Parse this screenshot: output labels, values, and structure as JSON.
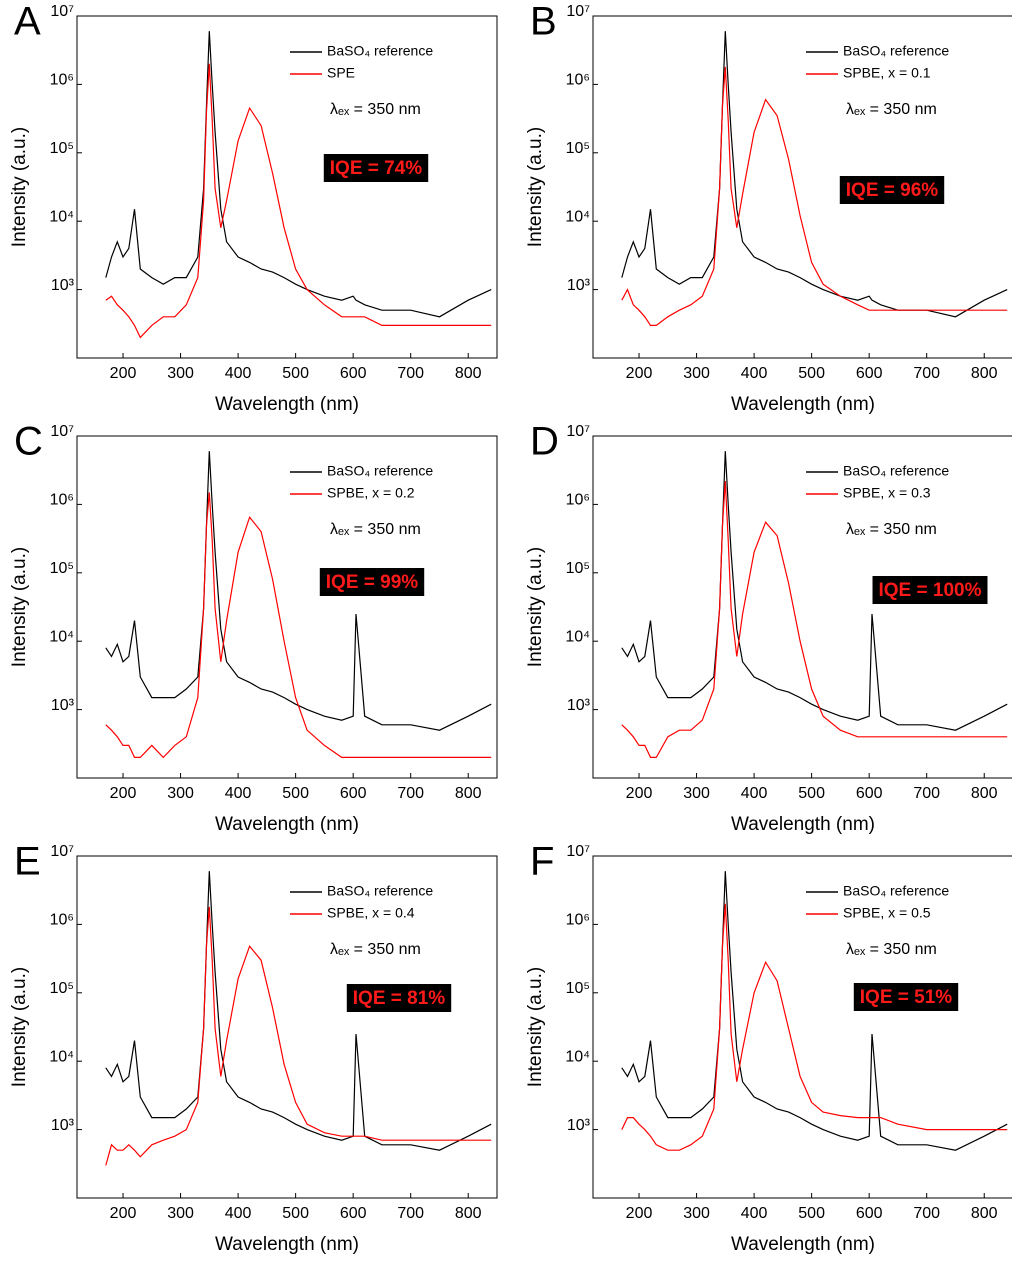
{
  "chart_data": [
    {
      "type": "line",
      "panel_label": "A",
      "x_label": "Wavelength (nm)",
      "y_label": "Intensity (a.u.)",
      "annotation": "λₑₓ = 350 nm",
      "iqe": "IQE = 74%",
      "y_scale": "log",
      "legend": "upper right",
      "xlim": [
        120,
        850
      ],
      "ylim": [
        100,
        10000000
      ],
      "xticks": [
        200,
        300,
        400,
        500,
        600,
        700,
        800
      ],
      "yticks": [
        {
          "value": 1000,
          "label": "10³"
        },
        {
          "value": 10000,
          "label": "10⁴"
        },
        {
          "value": 100000,
          "label": "10⁵"
        },
        {
          "value": 1000000,
          "label": "10⁶"
        },
        {
          "value": 10000000,
          "label": "10⁷"
        }
      ],
      "x": [
        170,
        180,
        190,
        200,
        210,
        220,
        230,
        250,
        270,
        290,
        310,
        330,
        340,
        345,
        350,
        355,
        360,
        370,
        380,
        400,
        420,
        440,
        460,
        480,
        500,
        520,
        550,
        580,
        600,
        605,
        620,
        650,
        700,
        750,
        800,
        840
      ],
      "series": [
        {
          "name": "BaSO₄ reference",
          "color": "#000000",
          "values": [
            1500,
            3000,
            5000,
            3000,
            4000,
            15000,
            2000,
            1500,
            1200,
            1500,
            1500,
            3000,
            30000,
            500000,
            6000000,
            1000000,
            200000,
            15000,
            5000,
            3000,
            2500,
            2000,
            1800,
            1500,
            1200,
            1000,
            800,
            700,
            800,
            700,
            600,
            500,
            500,
            400,
            700,
            1000
          ]
        },
        {
          "name": "SPE",
          "color": "#ff0000",
          "values": [
            700,
            800,
            600,
            500,
            400,
            300,
            200,
            300,
            400,
            400,
            600,
            1500,
            20000,
            400000,
            2000000,
            300000,
            30000,
            8000,
            20000,
            150000,
            450000,
            250000,
            50000,
            8000,
            2000,
            1000,
            600,
            400,
            400,
            400,
            400,
            300,
            300,
            300,
            300,
            300
          ]
        }
      ]
    },
    {
      "type": "line",
      "panel_label": "B",
      "x_label": "Wavelength (nm)",
      "y_label": "Intensity (a.u.)",
      "annotation": "λₑₓ = 350 nm",
      "iqe": "IQE = 96%",
      "y_scale": "log",
      "legend": "upper right",
      "xlim": [
        120,
        850
      ],
      "ylim": [
        100,
        10000000
      ],
      "xticks": [
        200,
        300,
        400,
        500,
        600,
        700,
        800
      ],
      "yticks": [
        {
          "value": 1000,
          "label": "10³"
        },
        {
          "value": 10000,
          "label": "10⁴"
        },
        {
          "value": 100000,
          "label": "10⁵"
        },
        {
          "value": 1000000,
          "label": "10⁶"
        },
        {
          "value": 10000000,
          "label": "10⁷"
        }
      ],
      "x": [
        170,
        180,
        190,
        200,
        210,
        220,
        230,
        250,
        270,
        290,
        310,
        330,
        340,
        345,
        350,
        355,
        360,
        370,
        380,
        400,
        420,
        440,
        460,
        480,
        500,
        520,
        550,
        580,
        600,
        605,
        620,
        650,
        700,
        750,
        800,
        840
      ],
      "series": [
        {
          "name": "BaSO₄ reference",
          "color": "#000000",
          "values": [
            1500,
            3000,
            5000,
            3000,
            4000,
            15000,
            2000,
            1500,
            1200,
            1500,
            1500,
            3000,
            30000,
            500000,
            6000000,
            1000000,
            200000,
            15000,
            5000,
            3000,
            2500,
            2000,
            1800,
            1500,
            1200,
            1000,
            800,
            700,
            800,
            700,
            600,
            500,
            500,
            400,
            700,
            1000
          ]
        },
        {
          "name": "SPBE, x = 0.1",
          "color": "#ff0000",
          "values": [
            700,
            1000,
            600,
            500,
            400,
            300,
            300,
            400,
            500,
            600,
            800,
            2000,
            30000,
            500000,
            1800000,
            300000,
            30000,
            8000,
            25000,
            200000,
            600000,
            350000,
            80000,
            12000,
            2500,
            1200,
            800,
            600,
            500,
            500,
            500,
            500,
            500,
            500,
            500,
            500
          ]
        }
      ]
    },
    {
      "type": "line",
      "panel_label": "C",
      "x_label": "Wavelength (nm)",
      "y_label": "Intensity (a.u.)",
      "annotation": "λₑₓ = 350 nm",
      "iqe": "IQE = 99%",
      "y_scale": "log",
      "legend": "upper right",
      "xlim": [
        120,
        850
      ],
      "ylim": [
        100,
        10000000
      ],
      "xticks": [
        200,
        300,
        400,
        500,
        600,
        700,
        800
      ],
      "yticks": [
        {
          "value": 1000,
          "label": "10³"
        },
        {
          "value": 10000,
          "label": "10⁴"
        },
        {
          "value": 100000,
          "label": "10⁵"
        },
        {
          "value": 1000000,
          "label": "10⁶"
        },
        {
          "value": 10000000,
          "label": "10⁷"
        }
      ],
      "x": [
        170,
        180,
        190,
        200,
        210,
        220,
        230,
        250,
        270,
        290,
        310,
        330,
        340,
        345,
        350,
        355,
        360,
        370,
        380,
        400,
        420,
        440,
        460,
        480,
        500,
        520,
        550,
        580,
        600,
        605,
        620,
        650,
        700,
        750,
        800,
        840
      ],
      "series": [
        {
          "name": "BaSO₄ reference",
          "color": "#000000",
          "values": [
            8000,
            6000,
            9000,
            5000,
            6000,
            20000,
            3000,
            1500,
            1500,
            1500,
            2000,
            3000,
            30000,
            500000,
            6000000,
            1000000,
            200000,
            15000,
            5000,
            3000,
            2500,
            2000,
            1800,
            1500,
            1200,
            1000,
            800,
            700,
            800,
            25000,
            800,
            600,
            600,
            500,
            800,
            1200
          ]
        },
        {
          "name": "SPBE, x = 0.2",
          "color": "#ff0000",
          "values": [
            600,
            500,
            400,
            300,
            300,
            200,
            200,
            300,
            200,
            300,
            400,
            1500,
            30000,
            500000,
            1500000,
            300000,
            30000,
            5000,
            20000,
            200000,
            650000,
            400000,
            80000,
            10000,
            1500,
            500,
            300,
            200,
            200,
            200,
            200,
            200,
            200,
            200,
            200,
            200
          ]
        }
      ]
    },
    {
      "type": "line",
      "panel_label": "D",
      "x_label": "Wavelength (nm)",
      "y_label": "Intensity (a.u.)",
      "annotation": "λₑₓ = 350 nm",
      "iqe": "IQE = 100%",
      "y_scale": "log",
      "legend": "upper right",
      "xlim": [
        120,
        850
      ],
      "ylim": [
        100,
        10000000
      ],
      "xticks": [
        200,
        300,
        400,
        500,
        600,
        700,
        800
      ],
      "yticks": [
        {
          "value": 1000,
          "label": "10³"
        },
        {
          "value": 10000,
          "label": "10⁴"
        },
        {
          "value": 100000,
          "label": "10⁵"
        },
        {
          "value": 1000000,
          "label": "10⁶"
        },
        {
          "value": 10000000,
          "label": "10⁷"
        }
      ],
      "x": [
        170,
        180,
        190,
        200,
        210,
        220,
        230,
        250,
        270,
        290,
        310,
        330,
        340,
        345,
        350,
        355,
        360,
        370,
        380,
        400,
        420,
        440,
        460,
        480,
        500,
        520,
        550,
        580,
        600,
        605,
        620,
        650,
        700,
        750,
        800,
        840
      ],
      "series": [
        {
          "name": "BaSO₄ reference",
          "color": "#000000",
          "values": [
            8000,
            6000,
            9000,
            5000,
            6000,
            20000,
            3000,
            1500,
            1500,
            1500,
            2000,
            3000,
            30000,
            500000,
            6000000,
            1000000,
            200000,
            15000,
            5000,
            3000,
            2500,
            2000,
            1800,
            1500,
            1200,
            1000,
            800,
            700,
            800,
            25000,
            800,
            600,
            600,
            500,
            800,
            1200
          ]
        },
        {
          "name": "SPBE, x = 0.3",
          "color": "#ff0000",
          "values": [
            600,
            500,
            400,
            300,
            300,
            200,
            200,
            400,
            500,
            500,
            700,
            2000,
            30000,
            500000,
            2200000,
            300000,
            30000,
            6000,
            25000,
            200000,
            550000,
            350000,
            70000,
            10000,
            2000,
            800,
            500,
            400,
            400,
            400,
            400,
            400,
            400,
            400,
            400,
            400
          ]
        }
      ]
    },
    {
      "type": "line",
      "panel_label": "E",
      "x_label": "Wavelength (nm)",
      "y_label": "Intensity (a.u.)",
      "annotation": "λₑₓ = 350 nm",
      "iqe": "IQE = 81%",
      "y_scale": "log",
      "legend": "upper right",
      "xlim": [
        120,
        850
      ],
      "ylim": [
        100,
        10000000
      ],
      "xticks": [
        200,
        300,
        400,
        500,
        600,
        700,
        800
      ],
      "yticks": [
        {
          "value": 1000,
          "label": "10³"
        },
        {
          "value": 10000,
          "label": "10⁴"
        },
        {
          "value": 100000,
          "label": "10⁵"
        },
        {
          "value": 1000000,
          "label": "10⁶"
        },
        {
          "value": 10000000,
          "label": "10⁷"
        }
      ],
      "x": [
        170,
        180,
        190,
        200,
        210,
        220,
        230,
        250,
        270,
        290,
        310,
        330,
        340,
        345,
        350,
        355,
        360,
        370,
        380,
        400,
        420,
        440,
        460,
        480,
        500,
        520,
        550,
        580,
        600,
        605,
        620,
        650,
        700,
        750,
        800,
        840
      ],
      "series": [
        {
          "name": "BaSO₄ reference",
          "color": "#000000",
          "values": [
            8000,
            6000,
            9000,
            5000,
            6000,
            20000,
            3000,
            1500,
            1500,
            1500,
            2000,
            3000,
            30000,
            500000,
            6000000,
            1000000,
            200000,
            15000,
            5000,
            3000,
            2500,
            2000,
            1800,
            1500,
            1200,
            1000,
            800,
            700,
            800,
            25000,
            800,
            600,
            600,
            500,
            800,
            1200
          ]
        },
        {
          "name": "SPBE, x = 0.4",
          "color": "#ff0000",
          "values": [
            300,
            600,
            500,
            500,
            600,
            500,
            400,
            600,
            700,
            800,
            1000,
            2500,
            30000,
            500000,
            1800000,
            300000,
            30000,
            6000,
            20000,
            160000,
            480000,
            300000,
            60000,
            9000,
            2500,
            1200,
            900,
            800,
            800,
            800,
            800,
            700,
            700,
            700,
            700,
            700
          ]
        }
      ]
    },
    {
      "type": "line",
      "panel_label": "F",
      "x_label": "Wavelength (nm)",
      "y_label": "Intensity (a.u.)",
      "annotation": "λₑₓ = 350 nm",
      "iqe": "IQE = 51%",
      "y_scale": "log",
      "legend": "upper right",
      "xlim": [
        120,
        850
      ],
      "ylim": [
        100,
        10000000
      ],
      "xticks": [
        200,
        300,
        400,
        500,
        600,
        700,
        800
      ],
      "yticks": [
        {
          "value": 1000,
          "label": "10³"
        },
        {
          "value": 10000,
          "label": "10⁴"
        },
        {
          "value": 100000,
          "label": "10⁵"
        },
        {
          "value": 1000000,
          "label": "10⁶"
        },
        {
          "value": 10000000,
          "label": "10⁷"
        }
      ],
      "x": [
        170,
        180,
        190,
        200,
        210,
        220,
        230,
        250,
        270,
        290,
        310,
        330,
        340,
        345,
        350,
        355,
        360,
        370,
        380,
        400,
        420,
        440,
        460,
        480,
        500,
        520,
        550,
        580,
        600,
        605,
        620,
        650,
        700,
        750,
        800,
        840
      ],
      "series": [
        {
          "name": "BaSO₄ reference",
          "color": "#000000",
          "values": [
            8000,
            6000,
            9000,
            5000,
            6000,
            20000,
            3000,
            1500,
            1500,
            1500,
            2000,
            3000,
            30000,
            500000,
            6000000,
            1000000,
            200000,
            15000,
            5000,
            3000,
            2500,
            2000,
            1800,
            1500,
            1200,
            1000,
            800,
            700,
            800,
            25000,
            800,
            600,
            600,
            500,
            800,
            1200
          ]
        },
        {
          "name": "SPBE, x = 0.5",
          "color": "#ff0000",
          "values": [
            1000,
            1500,
            1500,
            1200,
            1000,
            800,
            600,
            500,
            500,
            600,
            800,
            2000,
            30000,
            500000,
            2000000,
            300000,
            25000,
            5000,
            15000,
            100000,
            280000,
            150000,
            30000,
            6000,
            2500,
            1800,
            1600,
            1500,
            1500,
            1500,
            1500,
            1200,
            1000,
            1000,
            1000,
            1000
          ]
        }
      ]
    }
  ]
}
